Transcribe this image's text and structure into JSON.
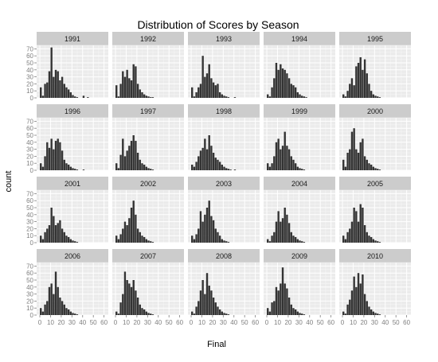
{
  "chart_data": {
    "type": "bar",
    "title": "Distribution of Scores by Season",
    "xlabel": "Final",
    "ylabel": "count",
    "xlim": [
      -3,
      64
    ],
    "ylim": [
      0,
      75
    ],
    "x_ticks": [
      0,
      10,
      20,
      30,
      40,
      50,
      60
    ],
    "x_tick_labels": [
      "0",
      "10",
      "20",
      "30",
      "40",
      "50",
      "60"
    ],
    "y_ticks": [
      0,
      10,
      20,
      30,
      40,
      50,
      60,
      70
    ],
    "y_tick_labels": [
      "0",
      "10",
      "20",
      "30",
      "40",
      "50",
      "60",
      "70"
    ],
    "bin_width": 2,
    "bin_starts": [
      0,
      2,
      4,
      6,
      8,
      10,
      12,
      14,
      16,
      18,
      20,
      22,
      24,
      26,
      28,
      30,
      32,
      34,
      36,
      38,
      40,
      42,
      44,
      46,
      48,
      50
    ],
    "colors": {
      "panel": "#ebebeb",
      "strip": "#cccccc",
      "bar": "#333333",
      "grid_major": "#ffffff",
      "grid_minor": "#f5f5f5",
      "text": "#7f7f7f"
    },
    "grid": true,
    "panels": [
      {
        "season": "1991",
        "values": [
          15,
          3,
          20,
          22,
          38,
          72,
          30,
          40,
          38,
          25,
          30,
          20,
          15,
          12,
          8,
          4,
          2,
          1,
          0,
          0,
          3,
          0,
          1,
          0,
          0,
          0
        ]
      },
      {
        "season": "1992",
        "values": [
          18,
          2,
          20,
          38,
          30,
          40,
          28,
          25,
          48,
          45,
          20,
          12,
          8,
          5,
          3,
          2,
          1,
          1,
          0,
          0,
          0,
          0,
          0,
          0,
          0,
          0
        ]
      },
      {
        "season": "1993",
        "values": [
          15,
          2,
          8,
          15,
          20,
          60,
          30,
          35,
          48,
          28,
          22,
          18,
          20,
          8,
          5,
          3,
          2,
          1,
          0,
          0,
          1,
          0,
          0,
          0,
          0,
          0
        ]
      },
      {
        "season": "1994",
        "values": [
          5,
          2,
          15,
          28,
          50,
          40,
          48,
          42,
          40,
          35,
          28,
          20,
          18,
          15,
          8,
          5,
          3,
          2,
          1,
          0,
          0,
          0,
          0,
          0,
          0,
          0
        ]
      },
      {
        "season": "1995",
        "values": [
          5,
          2,
          10,
          20,
          28,
          18,
          45,
          50,
          58,
          40,
          55,
          35,
          20,
          10,
          5,
          3,
          2,
          1,
          0,
          0,
          0,
          0,
          0,
          0,
          0,
          0
        ]
      },
      {
        "season": "1996",
        "values": [
          10,
          5,
          20,
          40,
          32,
          45,
          30,
          42,
          45,
          40,
          28,
          15,
          10,
          8,
          5,
          3,
          2,
          1,
          0,
          0,
          1,
          0,
          0,
          0,
          0,
          0
        ]
      },
      {
        "season": "1997",
        "values": [
          10,
          3,
          22,
          45,
          20,
          28,
          35,
          42,
          50,
          42,
          25,
          15,
          10,
          8,
          5,
          3,
          2,
          1,
          0,
          0,
          0,
          0,
          0,
          0,
          0,
          0
        ]
      },
      {
        "season": "1998",
        "values": [
          8,
          5,
          12,
          20,
          28,
          32,
          45,
          30,
          50,
          35,
          25,
          18,
          15,
          12,
          8,
          5,
          3,
          2,
          1,
          0,
          1,
          0,
          0,
          0,
          0,
          0
        ]
      },
      {
        "season": "1999",
        "values": [
          10,
          5,
          10,
          20,
          40,
          45,
          30,
          35,
          55,
          35,
          30,
          20,
          15,
          10,
          5,
          3,
          2,
          1,
          0,
          0,
          0,
          0,
          0,
          0,
          0,
          0
        ]
      },
      {
        "season": "2000",
        "values": [
          15,
          5,
          25,
          30,
          55,
          60,
          30,
          25,
          40,
          45,
          20,
          15,
          10,
          8,
          5,
          3,
          2,
          1,
          0,
          0,
          0,
          0,
          0,
          0,
          0,
          0
        ]
      },
      {
        "season": "2001",
        "values": [
          10,
          5,
          15,
          20,
          25,
          50,
          38,
          25,
          28,
          32,
          20,
          15,
          10,
          8,
          5,
          3,
          2,
          1,
          0,
          0,
          0,
          0,
          0,
          0,
          0,
          0
        ]
      },
      {
        "season": "2002",
        "values": [
          10,
          5,
          12,
          20,
          30,
          25,
          35,
          50,
          60,
          40,
          20,
          15,
          10,
          8,
          5,
          3,
          2,
          1,
          0,
          0,
          0,
          0,
          0,
          0,
          0,
          0
        ]
      },
      {
        "season": "2003",
        "values": [
          10,
          5,
          12,
          20,
          45,
          30,
          40,
          50,
          60,
          38,
          32,
          20,
          15,
          10,
          5,
          3,
          2,
          1,
          0,
          0,
          0,
          0,
          0,
          0,
          0,
          0
        ]
      },
      {
        "season": "2004",
        "values": [
          5,
          2,
          10,
          15,
          30,
          45,
          30,
          35,
          50,
          40,
          28,
          15,
          10,
          8,
          5,
          3,
          2,
          1,
          0,
          0,
          0,
          0,
          0,
          0,
          0,
          0
        ]
      },
      {
        "season": "2005",
        "values": [
          10,
          5,
          15,
          20,
          30,
          50,
          45,
          30,
          55,
          50,
          25,
          15,
          10,
          8,
          5,
          3,
          2,
          1,
          0,
          0,
          0,
          0,
          0,
          0,
          0,
          0
        ]
      },
      {
        "season": "2006",
        "values": [
          10,
          5,
          15,
          20,
          40,
          45,
          30,
          62,
          40,
          25,
          20,
          15,
          10,
          8,
          5,
          3,
          2,
          1,
          0,
          0,
          0,
          0,
          0,
          0,
          0,
          0
        ]
      },
      {
        "season": "2007",
        "values": [
          5,
          2,
          18,
          30,
          62,
          50,
          45,
          40,
          50,
          35,
          25,
          15,
          10,
          8,
          5,
          3,
          2,
          1,
          0,
          0,
          0,
          0,
          0,
          0,
          0,
          0
        ]
      },
      {
        "season": "2008",
        "values": [
          5,
          2,
          12,
          20,
          35,
          50,
          30,
          60,
          42,
          35,
          25,
          18,
          12,
          8,
          5,
          3,
          2,
          1,
          0,
          0,
          0,
          0,
          0,
          0,
          0,
          0
        ]
      },
      {
        "season": "2009",
        "values": [
          10,
          5,
          18,
          20,
          40,
          35,
          45,
          68,
          45,
          38,
          25,
          15,
          10,
          8,
          5,
          3,
          2,
          1,
          0,
          0,
          0,
          0,
          0,
          0,
          0,
          0
        ]
      },
      {
        "season": "2010",
        "values": [
          5,
          2,
          15,
          22,
          35,
          55,
          40,
          60,
          45,
          58,
          30,
          20,
          12,
          8,
          5,
          3,
          2,
          1,
          0,
          0,
          0,
          0,
          0,
          0,
          0,
          0
        ]
      }
    ]
  }
}
